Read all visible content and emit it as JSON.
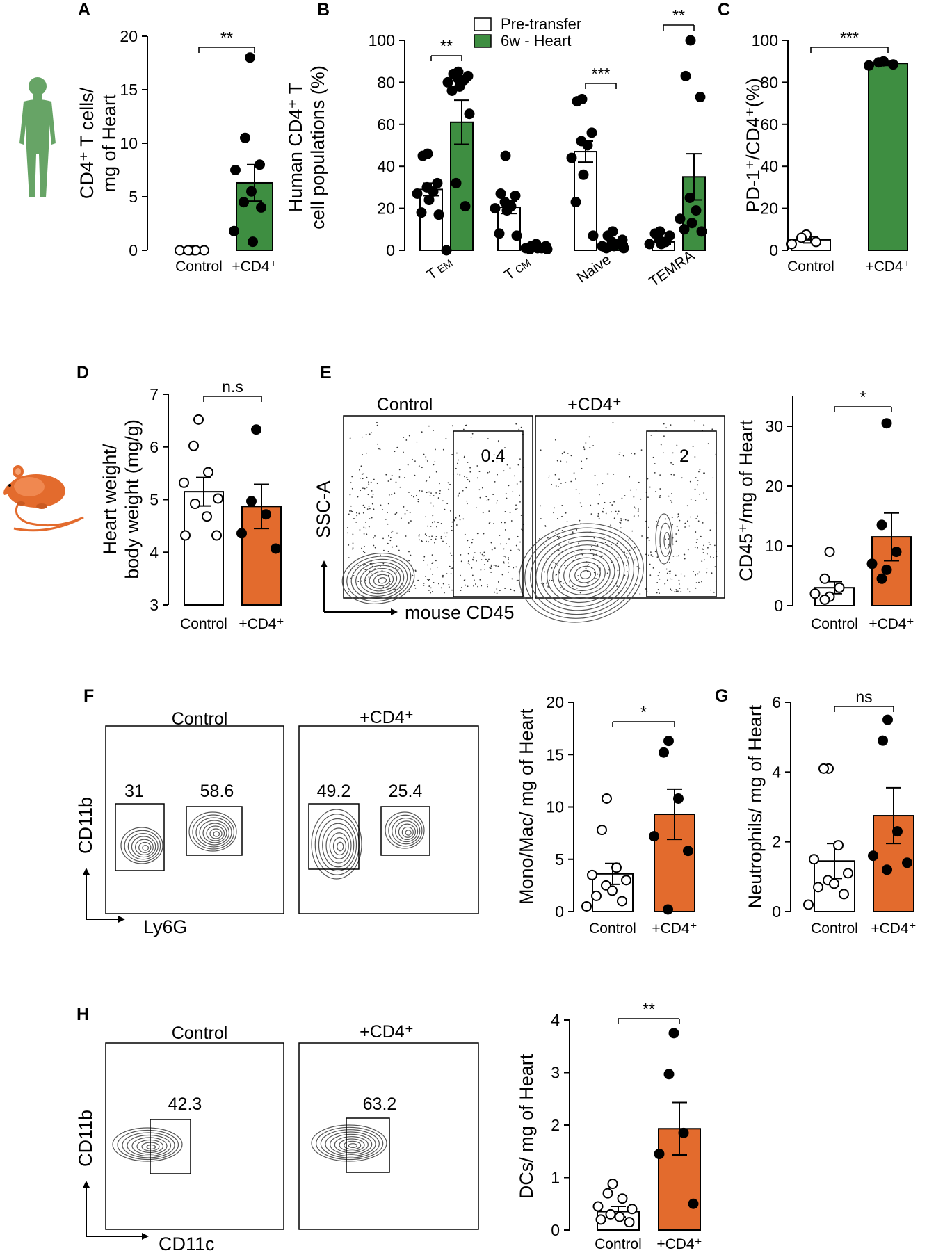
{
  "colors": {
    "green": "#3e8e41",
    "orange": "#e36b2d",
    "control_fill": "#ffffff",
    "line": "#000000",
    "flow": "#555555"
  },
  "chart_data": [
    {
      "id": "A",
      "panel_label": "A",
      "type": "bar",
      "ylabel": "CD4⁺ T cells/ mg of Heart",
      "ylabel_lines": [
        "CD4⁺ T cells/",
        "mg of Heart"
      ],
      "ylim": [
        0,
        20
      ],
      "yticks": [
        0,
        5,
        10,
        15,
        20
      ],
      "categories": [
        "Control",
        "+CD4⁺"
      ],
      "values": [
        0,
        6.3
      ],
      "errors": [
        0,
        1.7
      ],
      "fills": [
        "control",
        "green"
      ],
      "points": [
        [
          0,
          0,
          0,
          0,
          0,
          0
        ],
        [
          18,
          10.5,
          8,
          7.5,
          5.5,
          4.5,
          4,
          1.8,
          0.8
        ]
      ],
      "significance": [
        {
          "from": 0,
          "to": 1,
          "label": "**"
        }
      ]
    },
    {
      "id": "B",
      "panel_label": "B",
      "type": "bar",
      "ylabel": "Human CD4⁺ T cell populations (%)",
      "ylabel_lines": [
        "Human CD4⁺ T",
        "cell populations (%)"
      ],
      "ylim": [
        0,
        100
      ],
      "yticks": [
        0,
        20,
        40,
        60,
        80,
        100
      ],
      "categories": [
        "T EM",
        "T CM",
        "Naive",
        "TEMRA"
      ],
      "category_labels": [
        {
          "main": "T",
          "sub": "EM"
        },
        {
          "main": "T",
          "sub": "CM"
        },
        {
          "main": "Naive",
          "sub": ""
        },
        {
          "main": "TEMRA",
          "sub": ""
        }
      ],
      "legend": [
        "Pre-transfer",
        "6w - Heart"
      ],
      "series": [
        {
          "name": "Pre-transfer",
          "fill": "control",
          "values": [
            29,
            20.5,
            47,
            4
          ],
          "errors": [
            3,
            3,
            5,
            1
          ],
          "points": [
            [
              46,
              45,
              32,
              30,
              28,
              27,
              24,
              18,
              17
            ],
            [
              45,
              27,
              26,
              23,
              21,
              20,
              19,
              8,
              7
            ],
            [
              72,
              71,
              56,
              52,
              50,
              44,
              36,
              23,
              7
            ],
            [
              9,
              8,
              7,
              5,
              4,
              3,
              3
            ]
          ]
        },
        {
          "name": "6w - Heart",
          "fill": "green",
          "values": [
            61,
            1.5,
            3,
            35
          ],
          "errors": [
            10.5,
            0.5,
            1,
            11
          ],
          "points": [
            [
              85,
              84,
              83,
              82,
              81,
              80,
              78,
              76,
              65,
              32,
              21,
              0
            ],
            [
              3,
              2,
              2,
              1.5,
              1,
              1,
              1,
              0.5,
              0.5
            ],
            [
              9,
              7,
              5,
              4,
              3,
              2,
              2,
              1,
              1
            ],
            [
              100,
              83,
              73,
              25,
              19,
              15,
              13,
              10,
              9
            ]
          ]
        }
      ],
      "significance": [
        {
          "category": 0,
          "label": "**"
        },
        {
          "category": 2,
          "label": "***"
        },
        {
          "category": 3,
          "label": "**"
        }
      ]
    },
    {
      "id": "C",
      "panel_label": "C",
      "type": "bar",
      "ylabel": "PD-1⁺/CD4⁺(%)",
      "ylabel_lines": [
        "PD-1⁺/CD4⁺(%)"
      ],
      "ylim": [
        0,
        100
      ],
      "yticks": [
        0,
        20,
        40,
        60,
        80,
        100
      ],
      "categories": [
        "Control",
        "+CD4⁺"
      ],
      "values": [
        5,
        89
      ],
      "errors": [
        1.5,
        1
      ],
      "fills": [
        "control",
        "green"
      ],
      "points": [
        [
          7.5,
          6,
          4,
          3
        ],
        [
          90,
          89.5,
          88.5,
          88
        ]
      ],
      "significance": [
        {
          "from": 0,
          "to": 1,
          "label": "***"
        }
      ]
    },
    {
      "id": "D",
      "panel_label": "D",
      "type": "bar",
      "ylabel": "Heart weight/ body weight (mg/g)",
      "ylabel_lines": [
        "Heart weight/",
        "body weight (mg/g)"
      ],
      "ylim": [
        3,
        7
      ],
      "yticks": [
        3,
        4,
        5,
        6,
        7
      ],
      "categories": [
        "Control",
        "+CD4⁺"
      ],
      "values": [
        5.15,
        4.87
      ],
      "errors": [
        0.27,
        0.42
      ],
      "fills": [
        "control",
        "orange"
      ],
      "points": [
        [
          6.52,
          6.02,
          5.52,
          5.32,
          5.02,
          4.92,
          4.68,
          4.32,
          4.32
        ],
        [
          6.33,
          4.97,
          4.72,
          4.36,
          4.07
        ]
      ],
      "significance": [
        {
          "from": 0,
          "to": 1,
          "label": "n.s"
        }
      ]
    },
    {
      "id": "E",
      "panel_label": "",
      "type": "bar",
      "ylabel": "CD45⁺/mg of Heart",
      "ylabel_lines": [
        "CD45⁺/mg of Heart"
      ],
      "ylim": [
        0,
        35
      ],
      "yticks": [
        0,
        10,
        20,
        30
      ],
      "categories": [
        "Control",
        "+CD4⁺"
      ],
      "values": [
        3,
        11.5
      ],
      "errors": [
        1,
        4
      ],
      "fills": [
        "control",
        "orange"
      ],
      "points": [
        [
          9,
          4.5,
          3,
          2,
          1.5,
          1
        ],
        [
          30.5,
          13.5,
          9,
          7,
          6,
          4.5
        ]
      ],
      "significance": [
        {
          "from": 0,
          "to": 1,
          "label": "*"
        }
      ]
    },
    {
      "id": "F",
      "panel_label": "",
      "type": "bar",
      "ylabel": "Mono/Mac/ mg of Heart",
      "ylabel_lines": [
        "Mono/Mac/ mg of Heart"
      ],
      "ylim": [
        0,
        20
      ],
      "yticks": [
        0,
        5,
        10,
        15,
        20
      ],
      "categories": [
        "Control",
        "+CD4⁺"
      ],
      "values": [
        3.6,
        9.3
      ],
      "errors": [
        1,
        2.4
      ],
      "fills": [
        "control",
        "orange"
      ],
      "points": [
        [
          10.8,
          7.8,
          4.2,
          3.5,
          3,
          2.5,
          2,
          1.5,
          1,
          0.5
        ],
        [
          16.3,
          15.2,
          10.8,
          7.2,
          5.8,
          0.2
        ]
      ],
      "significance": [
        {
          "from": 0,
          "to": 1,
          "label": "*"
        }
      ]
    },
    {
      "id": "G",
      "panel_label": "G",
      "type": "bar",
      "ylabel": "Neutrophils/ mg of Heart",
      "ylabel_lines": [
        "Neutrophils/ mg of Heart"
      ],
      "ylim": [
        0,
        6
      ],
      "yticks": [
        0,
        2,
        4,
        6
      ],
      "categories": [
        "Control",
        "+CD4⁺"
      ],
      "values": [
        1.45,
        2.75
      ],
      "errors": [
        0.5,
        0.8
      ],
      "fills": [
        "control",
        "orange"
      ],
      "points": [
        [
          4.1,
          4.1,
          1.9,
          1.5,
          1.1,
          0.9,
          0.8,
          0.7,
          0.5,
          0.2
        ],
        [
          5.5,
          4.9,
          2.3,
          1.6,
          1.4,
          1.2
        ]
      ],
      "significance": [
        {
          "from": 0,
          "to": 1,
          "label": "ns"
        }
      ]
    },
    {
      "id": "H",
      "panel_label": "",
      "type": "bar",
      "ylabel": "DCs/ mg of Heart",
      "ylabel_lines": [
        "DCs/ mg of Heart"
      ],
      "ylim": [
        0,
        4
      ],
      "yticks": [
        0,
        1,
        2,
        3,
        4
      ],
      "categories": [
        "Control",
        "+CD4⁺"
      ],
      "values": [
        0.35,
        1.93
      ],
      "errors": [
        0.1,
        0.5
      ],
      "fills": [
        "control",
        "orange"
      ],
      "points": [
        [
          0.88,
          0.7,
          0.6,
          0.45,
          0.4,
          0.3,
          0.25,
          0.2,
          0.15
        ],
        [
          3.75,
          2.97,
          1.85,
          1.45,
          0.5
        ]
      ],
      "significance": [
        {
          "from": 0,
          "to": 1,
          "label": "**"
        }
      ]
    }
  ],
  "panel_labels": {
    "E": "E",
    "F": "F",
    "H": "H"
  },
  "flow": {
    "E": {
      "titles": [
        "Control",
        "+CD4⁺"
      ],
      "gates": [
        "0.4",
        "2"
      ],
      "y_axis": "SSC-A",
      "x_axis": "mouse CD45"
    },
    "F": {
      "titles": [
        "Control",
        "+CD4⁺"
      ],
      "gates": [
        [
          "31",
          "58.6"
        ],
        [
          "49.2",
          "25.4"
        ]
      ],
      "y_axis": "CD11b",
      "x_axis": "Ly6G"
    },
    "H": {
      "titles": [
        "Control",
        "+CD4⁺"
      ],
      "gates": [
        "42.3",
        "63.2"
      ],
      "y_axis": "CD11b",
      "x_axis": "CD11c"
    }
  },
  "icons": {
    "human": "human-silhouette-icon",
    "mouse": "mouse-icon"
  }
}
